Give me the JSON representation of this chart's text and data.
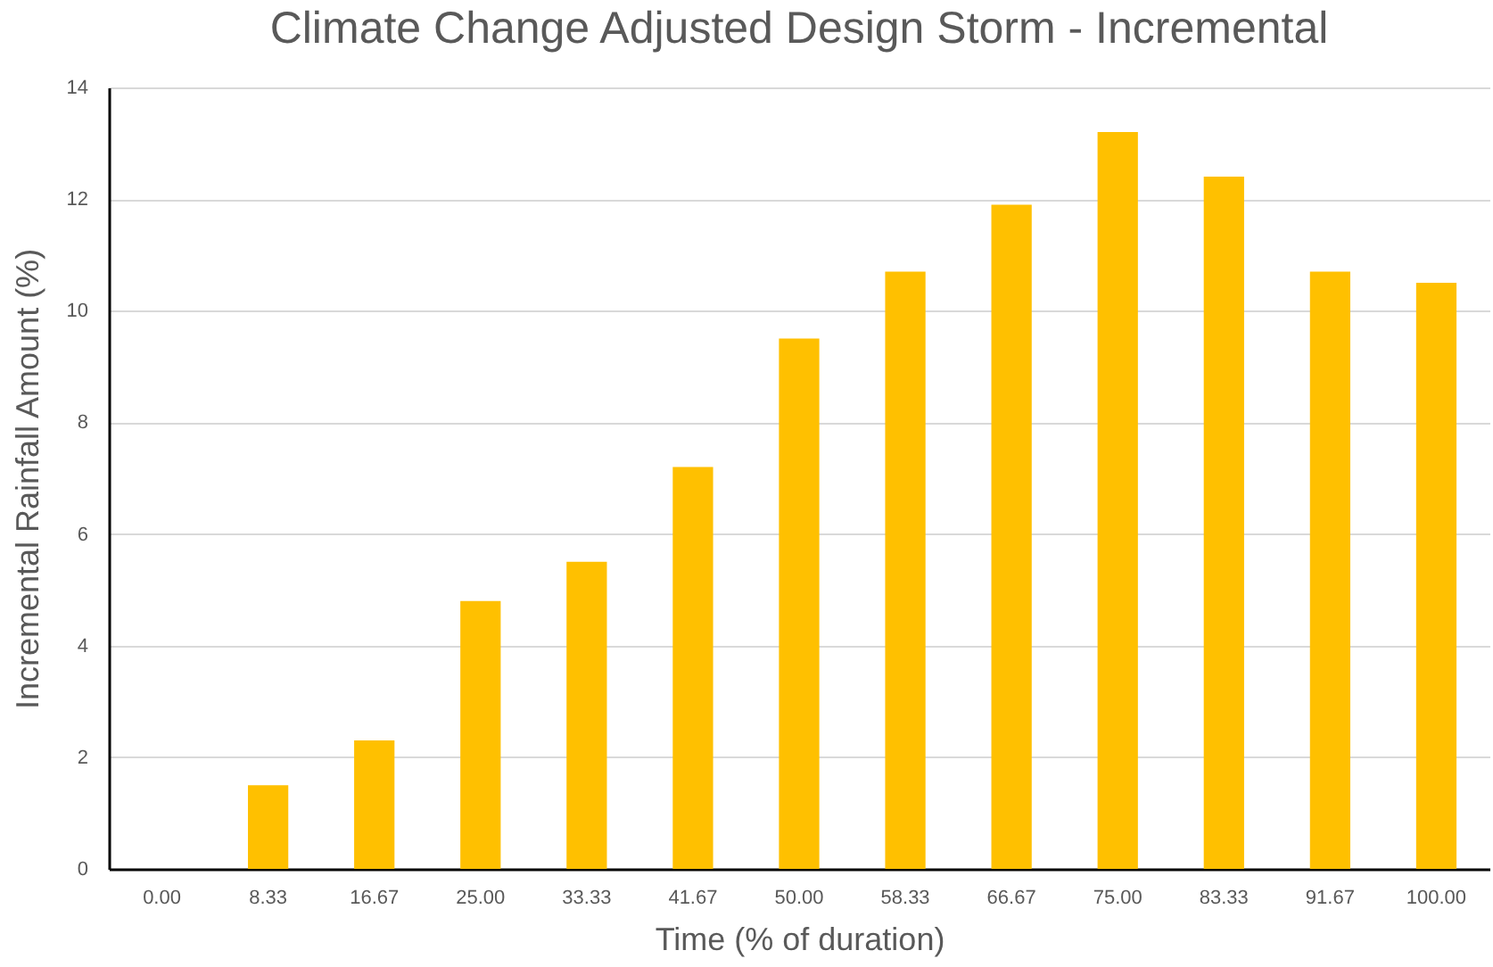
{
  "chart_data": {
    "type": "bar",
    "title": "Climate Change Adjusted Design Storm - Incremental",
    "xlabel": "Time (% of duration)",
    "ylabel": "Incremental Rainfall Amount (%)",
    "categories": [
      "0.00",
      "8.33",
      "16.67",
      "25.00",
      "33.33",
      "41.67",
      "50.00",
      "58.33",
      "66.67",
      "75.00",
      "83.33",
      "91.67",
      "100.00"
    ],
    "values": [
      0,
      1.5,
      2.3,
      4.8,
      5.5,
      7.2,
      9.5,
      10.7,
      11.9,
      13.2,
      12.4,
      10.7,
      10.5
    ],
    "color": "#ffc000",
    "ylim": [
      0,
      14
    ],
    "yticks": [
      0,
      2,
      4,
      6,
      8,
      10,
      12,
      14
    ],
    "grid": "y"
  }
}
